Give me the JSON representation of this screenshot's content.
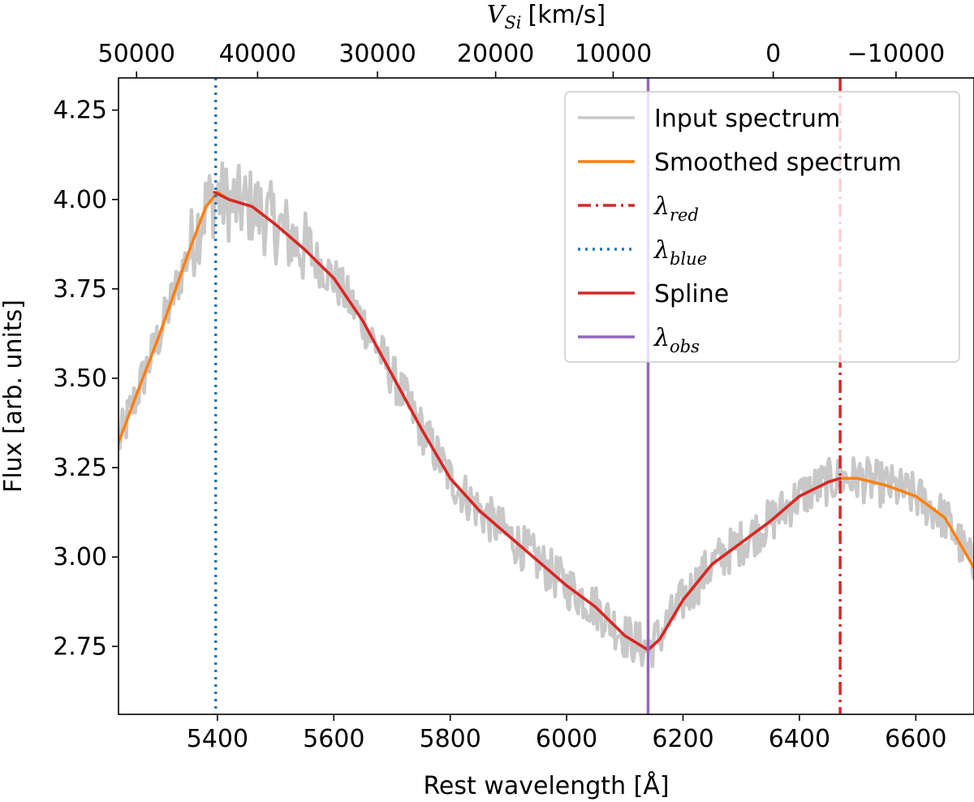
{
  "chart_data": {
    "type": "line",
    "xlabel": "Rest wavelength [Å]",
    "ylabel": "Flux [arb. units]",
    "top_xlabel": "V",
    "top_xlabel_sub": "Si",
    "top_xlabel_unit": "[km/s]",
    "xlim": [
      5230,
      6700
    ],
    "ylim": [
      2.56,
      4.34
    ],
    "xticks": [
      5400,
      5600,
      5800,
      6000,
      6200,
      6400,
      6600
    ],
    "xtick_labels": [
      "5400",
      "5600",
      "5800",
      "6000",
      "6200",
      "6400",
      "6600"
    ],
    "yticks": [
      2.75,
      3.0,
      3.25,
      3.5,
      3.75,
      4.0,
      4.25
    ],
    "ytick_labels": [
      "2.75",
      "3.00",
      "3.25",
      "3.50",
      "3.75",
      "4.00",
      "4.25"
    ],
    "top_ticks_wavelength": [
      5261,
      5469,
      5675,
      5878,
      6080,
      6355,
      6566
    ],
    "top_tick_labels": [
      "50000",
      "40000",
      "30000",
      "20000",
      "10000",
      "0",
      "−10000"
    ],
    "series": [
      {
        "name": "Input spectrum",
        "color": "#c8c8c8",
        "style": "noisy",
        "x": [
          5230,
          5260,
          5300,
          5350,
          5380,
          5400,
          5420,
          5460,
          5500,
          5550,
          5600,
          5650,
          5700,
          5750,
          5800,
          5850,
          5900,
          5950,
          6000,
          6050,
          6100,
          6140,
          6160,
          6200,
          6250,
          6300,
          6350,
          6400,
          6450,
          6470,
          6500,
          6550,
          6600,
          6650,
          6700
        ],
        "y": [
          3.32,
          3.45,
          3.62,
          3.85,
          3.98,
          4.01,
          3.99,
          3.98,
          3.93,
          3.86,
          3.78,
          3.66,
          3.51,
          3.36,
          3.22,
          3.13,
          3.06,
          2.99,
          2.92,
          2.86,
          2.78,
          2.74,
          2.78,
          2.88,
          2.98,
          3.04,
          3.1,
          3.17,
          3.21,
          3.22,
          3.22,
          3.2,
          3.17,
          3.11,
          2.97
        ]
      },
      {
        "name": "Smoothed spectrum",
        "color": "#ff7f0e",
        "style": "solid",
        "x": [
          5230,
          5260,
          5300,
          5350,
          5380,
          5400,
          5420,
          5460,
          5500,
          5550,
          5600,
          5650,
          5700,
          5750,
          5800,
          5850,
          5900,
          5950,
          6000,
          6050,
          6100,
          6140,
          6160,
          6200,
          6250,
          6300,
          6350,
          6400,
          6450,
          6470,
          6500,
          6550,
          6600,
          6650,
          6700
        ],
        "y": [
          3.32,
          3.45,
          3.62,
          3.85,
          3.98,
          4.02,
          4.0,
          3.98,
          3.93,
          3.86,
          3.78,
          3.66,
          3.51,
          3.36,
          3.22,
          3.13,
          3.06,
          2.99,
          2.92,
          2.86,
          2.78,
          2.74,
          2.77,
          2.88,
          2.98,
          3.04,
          3.1,
          3.17,
          3.21,
          3.22,
          3.22,
          3.2,
          3.17,
          3.11,
          2.97
        ]
      },
      {
        "name": "Spline",
        "color": "#d62728",
        "style": "solid",
        "x": [
          5395,
          5420,
          5460,
          5500,
          5550,
          5600,
          5650,
          5700,
          5750,
          5800,
          5850,
          5900,
          5950,
          6000,
          6050,
          6100,
          6140,
          6160,
          6200,
          6250,
          6300,
          6350,
          6400,
          6450,
          6470
        ],
        "y": [
          4.02,
          4.0,
          3.98,
          3.93,
          3.86,
          3.78,
          3.66,
          3.51,
          3.36,
          3.22,
          3.13,
          3.06,
          2.99,
          2.92,
          2.86,
          2.78,
          2.74,
          2.77,
          2.88,
          2.98,
          3.04,
          3.1,
          3.17,
          3.21,
          3.22
        ]
      }
    ],
    "vlines": [
      {
        "name": "λblue",
        "x": 5397,
        "color": "#1f77b4",
        "style": "dotted"
      },
      {
        "name": "λred",
        "x": 6470,
        "color": "#d62728",
        "style": "dashdot"
      },
      {
        "name": "λobs",
        "x": 6140,
        "color": "#9467bd",
        "style": "solid"
      }
    ],
    "legend": {
      "placement": "top-right",
      "entries": [
        {
          "label": "Input spectrum",
          "color": "#c8c8c8",
          "style": "solid",
          "math": false
        },
        {
          "label": "Smoothed spectrum",
          "color": "#ff7f0e",
          "style": "solid",
          "math": false
        },
        {
          "label": "λ",
          "sub": "red",
          "color": "#d62728",
          "style": "dashdot",
          "math": true
        },
        {
          "label": "λ",
          "sub": "blue",
          "color": "#1f77b4",
          "style": "dotted",
          "math": true
        },
        {
          "label": "Spline",
          "color": "#d62728",
          "style": "solid",
          "math": false
        },
        {
          "label": "λ",
          "sub": "obs",
          "color": "#9467bd",
          "style": "solid",
          "math": true
        }
      ]
    }
  }
}
